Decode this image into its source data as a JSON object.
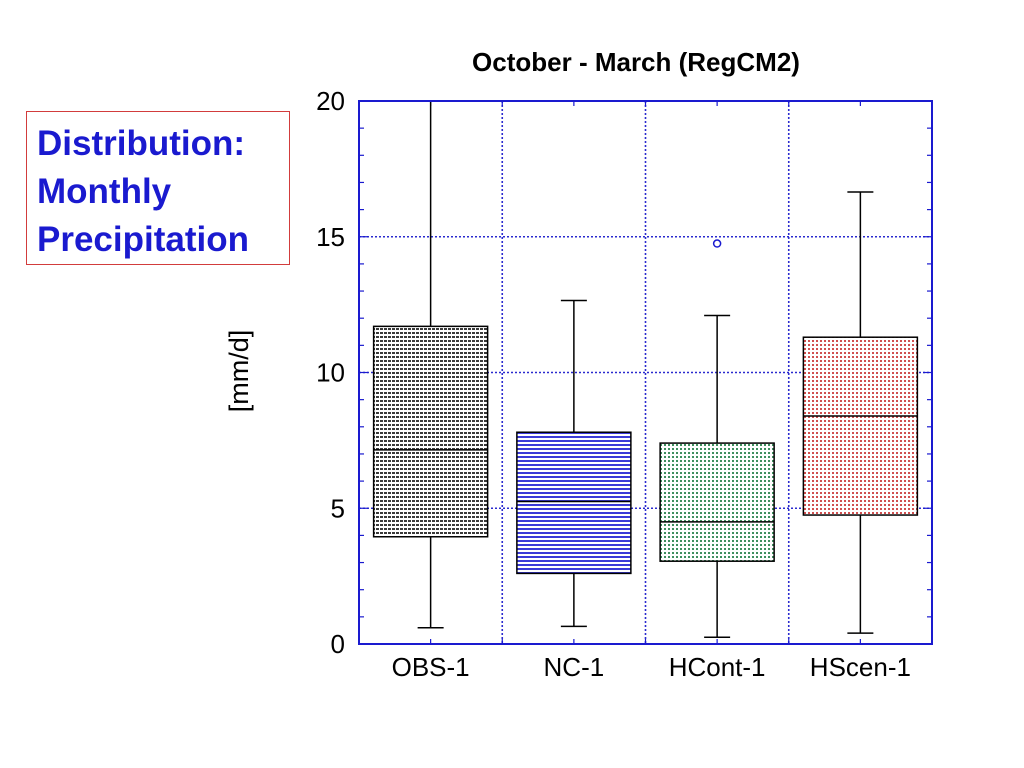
{
  "side_label": {
    "lines": [
      "Distribution:",
      "Monthly",
      "Precipitation"
    ]
  },
  "chart_data": {
    "type": "box",
    "title": "October - March (RegCM2)",
    "xlabel": "",
    "ylabel": "[mm/d]",
    "ylim": [
      0,
      20
    ],
    "yticks": [
      0,
      5,
      10,
      15,
      20
    ],
    "grid": true,
    "categories": [
      "OBS-1",
      "NC-1",
      "HCont-1",
      "HScen-1"
    ],
    "boxes": [
      {
        "category": "OBS-1",
        "whisker_low": 0.6,
        "q1": 3.95,
        "median": 7.15,
        "q3": 11.7,
        "whisker_high": 20.0,
        "outliers": [],
        "color": "#3a3a3a"
      },
      {
        "category": "NC-1",
        "whisker_low": 0.65,
        "q1": 2.6,
        "median": 5.25,
        "q3": 7.8,
        "whisker_high": 12.65,
        "outliers": [],
        "color": "#3a3ad8"
      },
      {
        "category": "HCont-1",
        "whisker_low": 0.25,
        "q1": 3.05,
        "median": 4.5,
        "q3": 7.4,
        "whisker_high": 12.1,
        "outliers": [
          14.75
        ],
        "color": "#3f8f5f"
      },
      {
        "category": "HScen-1",
        "whisker_low": 0.4,
        "q1": 4.75,
        "median": 8.4,
        "q3": 11.3,
        "whisker_high": 16.65,
        "outliers": [],
        "color": "#d05050"
      }
    ],
    "colors": {
      "axis": "#1a1acf",
      "grid": "#2b2bcf",
      "whisker": "#000000",
      "outlier": "#1a1acf"
    }
  }
}
